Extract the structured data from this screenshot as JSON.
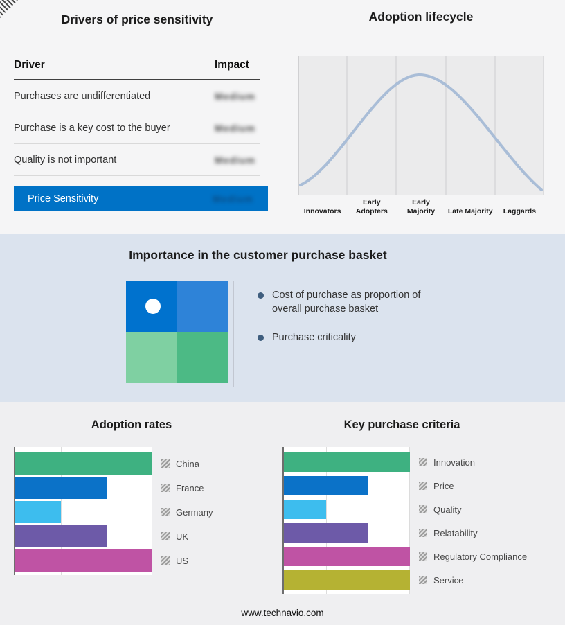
{
  "footer": {
    "url": "www.technavio.com"
  },
  "colors": {
    "accent_blue": "#0072c6",
    "top_band": "#f5f5f6",
    "mid_band": "#dbe3ee",
    "bottom_band": "#efeff1",
    "curve": "#a9bdd7",
    "quad": [
      "#0072ce",
      "#2e83d8",
      "#7fd0a2",
      "#4cba85"
    ]
  },
  "drivers_table": {
    "title": "Drivers of price sensitivity",
    "columns": [
      "Driver",
      "Impact"
    ],
    "rows": [
      {
        "driver": "Purchases are undifferentiated",
        "impact": "Medium"
      },
      {
        "driver": "Purchase is a key cost to the buyer",
        "impact": "Medium"
      },
      {
        "driver": "Quality is not important",
        "impact": "Medium"
      }
    ],
    "summary_row": {
      "driver": "Price Sensitivity",
      "impact": "Medium"
    },
    "impact_values_blurred": true
  },
  "lifecycle": {
    "title": "Adoption lifecycle",
    "stages": [
      "Innovators",
      "Early Adopters",
      "Early Majority",
      "Late Majority",
      "Laggards"
    ]
  },
  "basket": {
    "title": "Importance in the customer purchase basket",
    "bullets": [
      "Cost of purchase as proportion of overall purchase basket",
      "Purchase criticality"
    ]
  },
  "chart_data": [
    {
      "type": "bar",
      "orientation": "horizontal",
      "title": "Adoption rates",
      "categories": [
        "China",
        "France",
        "Germany",
        "UK",
        "US"
      ],
      "values": [
        3,
        2,
        1,
        2,
        3
      ],
      "xlim": [
        0,
        3
      ],
      "grid": true,
      "legend_position": "right",
      "colors": [
        "#3eb181",
        "#0b72c8",
        "#3dbdee",
        "#6d5aa8",
        "#bf53a4"
      ]
    },
    {
      "type": "bar",
      "orientation": "horizontal",
      "title": "Key purchase criteria",
      "categories": [
        "Innovation",
        "Price",
        "Quality",
        "Relatability",
        "Regulatory Compliance",
        "Service"
      ],
      "values": [
        3,
        2,
        1,
        2,
        3,
        3
      ],
      "xlim": [
        0,
        3
      ],
      "grid": true,
      "legend_position": "right",
      "colors": [
        "#3eb181",
        "#0b72c8",
        "#3dbdee",
        "#6d5aa8",
        "#bf53a4",
        "#b5b233"
      ]
    }
  ]
}
